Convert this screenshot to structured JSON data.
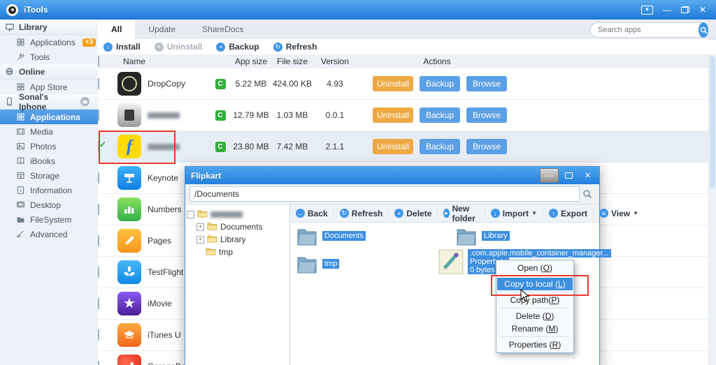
{
  "colors": {
    "accent": "#3f96e8",
    "button_orange": "#efa944",
    "button_blue": "#5ba0e5",
    "selection": "#3d8fe0",
    "badge_green": "#35ae3b",
    "annotation_red": "#e8382e"
  },
  "titlebar": {
    "title": "iTools",
    "controls": [
      "skin-menu",
      "minimize",
      "restore",
      "close"
    ]
  },
  "sidebar": {
    "sections": [
      {
        "header": "Library",
        "icon": "monitor",
        "items": [
          {
            "label": "Applications",
            "icon": "grid",
            "badge": "+3"
          },
          {
            "label": "Tools",
            "icon": "wrench"
          }
        ]
      },
      {
        "header": "Online",
        "icon": "globe",
        "items": [
          {
            "label": "App Store",
            "icon": "grid"
          }
        ]
      },
      {
        "header": "Sonal's Iphone",
        "icon": "phone",
        "eject": true,
        "items": [
          {
            "label": "Applications",
            "icon": "grid",
            "selected": true
          },
          {
            "label": "Media",
            "icon": "film"
          },
          {
            "label": "Photos",
            "icon": "photo"
          },
          {
            "label": "iBooks",
            "icon": "book"
          },
          {
            "label": "Storage",
            "icon": "disk"
          },
          {
            "label": "Information",
            "icon": "info"
          },
          {
            "label": "Desktop",
            "icon": "desktop"
          },
          {
            "label": "FileSystem",
            "icon": "folder"
          },
          {
            "label": "Advanced",
            "icon": "brush"
          }
        ]
      }
    ]
  },
  "main": {
    "tabs": [
      {
        "label": "All",
        "active": true
      },
      {
        "label": "Update"
      },
      {
        "label": "ShareDocs"
      }
    ],
    "search": {
      "placeholder": "Search apps"
    },
    "toolbar": [
      {
        "label": "Install",
        "glyph": "↓"
      },
      {
        "label": "Uninstall",
        "glyph": "×",
        "disabled": true
      },
      {
        "label": "Backup",
        "glyph": "▪"
      },
      {
        "label": "Refresh",
        "glyph": "↻"
      }
    ],
    "table": {
      "columns": [
        "Name",
        "App size",
        "File size",
        "Version",
        "Actions"
      ],
      "action_labels": [
        "Uninstall",
        "Backup",
        "Browse"
      ],
      "rows": [
        {
          "name": "DropCopy",
          "icon": "dropcopy",
          "cbadge": "C",
          "app_size": "5.22 MB",
          "file_size": "424.00 KB",
          "version": "4.93",
          "actions": true
        },
        {
          "name": "",
          "blurred": true,
          "icon": "silver",
          "cbadge": "C",
          "app_size": "12.79 MB",
          "file_size": "1.03 MB",
          "version": "0.0.1",
          "actions": true
        },
        {
          "name": "",
          "blurred": true,
          "icon": "flipkart",
          "cbadge": "C",
          "app_size": "23.80 MB",
          "file_size": "7.42 MB",
          "version": "2.1.1",
          "actions": true,
          "checked": true,
          "selected": true
        },
        {
          "name": "Keynote",
          "icon": "keynote"
        },
        {
          "name": "Numbers",
          "icon": "numbers"
        },
        {
          "name": "Pages",
          "icon": "pages"
        },
        {
          "name": "TestFlight",
          "icon": "testflight"
        },
        {
          "name": "iMovie",
          "icon": "imovie"
        },
        {
          "name": "iTunes U",
          "icon": "itunesu"
        },
        {
          "name": "GarageBand",
          "icon": "garageband"
        }
      ]
    }
  },
  "dialog": {
    "title": "Flipkart",
    "path": "/Documents",
    "window_buttons": [
      "minimize",
      "maximize",
      "close"
    ],
    "tree": [
      {
        "label": "",
        "blurred": true,
        "expander": "-",
        "indent": 0
      },
      {
        "label": "Documents",
        "expander": "+",
        "indent": 1
      },
      {
        "label": "Library",
        "expander": "+",
        "indent": 1
      },
      {
        "label": "tmp",
        "expander": "",
        "indent": 1
      }
    ],
    "toolbar": [
      {
        "label": "Back",
        "glyph": "←"
      },
      {
        "label": "Refresh",
        "glyph": "↻"
      },
      {
        "label": "Delete",
        "glyph": "×"
      },
      {
        "label": "New folder",
        "glyph": "▸"
      },
      {
        "label": "Import",
        "glyph": "↓",
        "caret": true
      },
      {
        "label": "Export",
        "glyph": "↑"
      },
      {
        "label": "View",
        "glyph": "≡",
        "caret": true
      }
    ],
    "folders": [
      "Documents",
      "Library",
      "tmp"
    ],
    "file": {
      "name": ".com.apple.mobile_container_manager...",
      "type": "Property Li",
      "size": "0 bytes"
    }
  },
  "context_menu": {
    "items": [
      {
        "label": "Open",
        "key": "O",
        "spaced": true,
        "sep_after": true
      },
      {
        "label": "Copy to local",
        "key": "L",
        "spaced": true,
        "highlighted": true,
        "sep_after": true
      },
      {
        "label": "Copy path",
        "key": "P",
        "spaced": false,
        "sep_after": true
      },
      {
        "label": "Delete",
        "key": "D",
        "spaced": true
      },
      {
        "label": "Rename",
        "key": "M",
        "spaced": true,
        "sep_after": true
      },
      {
        "label": "Properties",
        "key": "R",
        "spaced": true
      }
    ]
  }
}
